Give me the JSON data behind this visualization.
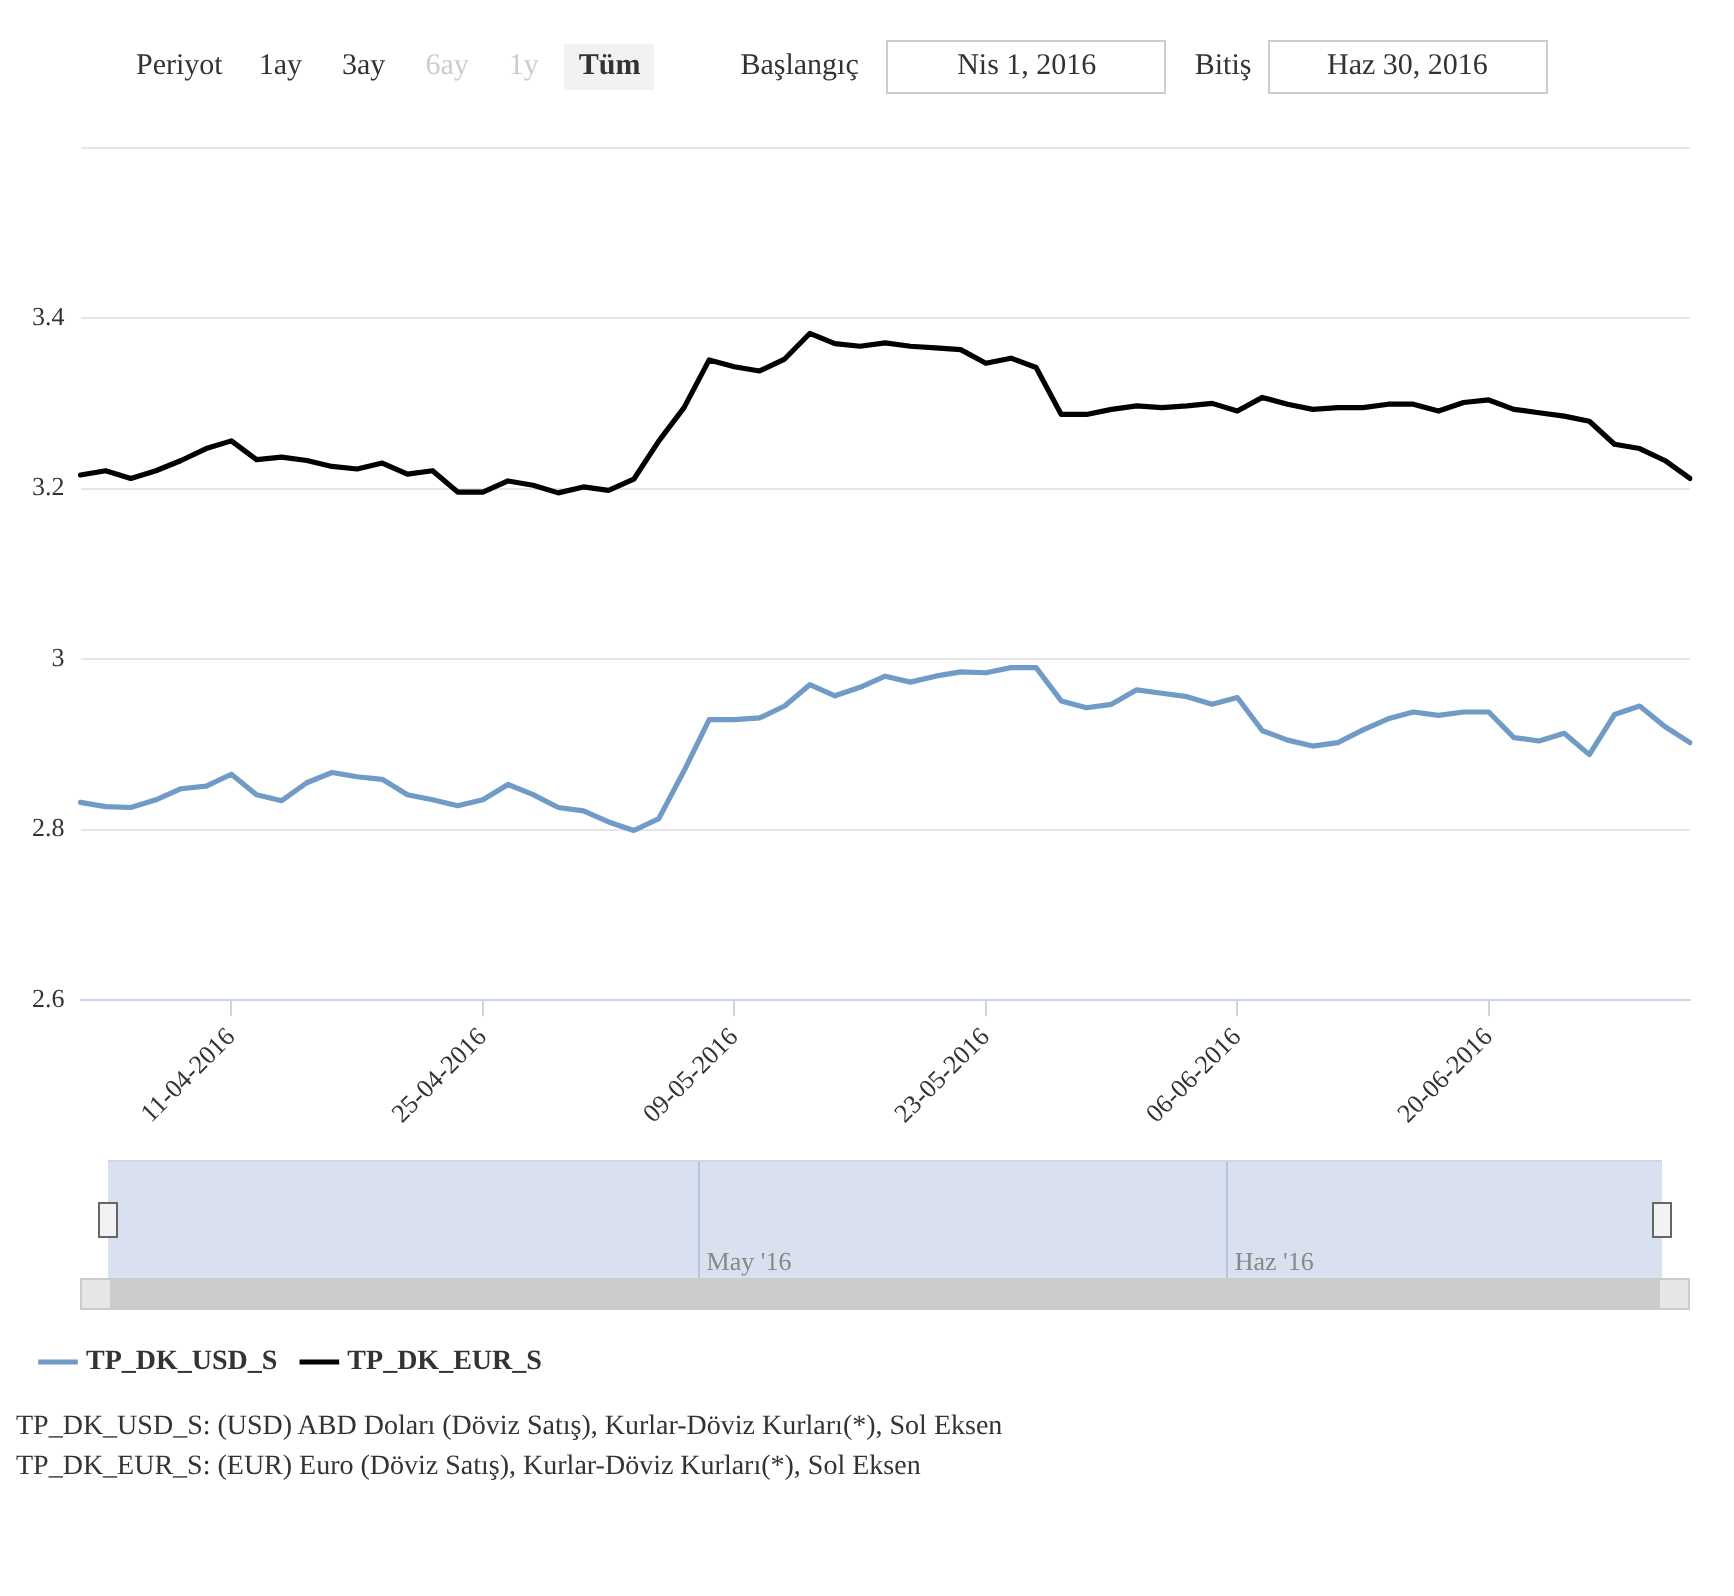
{
  "chart_data": {
    "type": "line",
    "categories": [
      null,
      null,
      null,
      null,
      null,
      null,
      "11-04-2016",
      null,
      null,
      null,
      null,
      null,
      null,
      null,
      null,
      null,
      "25-04-2016",
      null,
      null,
      null,
      null,
      null,
      null,
      null,
      null,
      null,
      "09-05-2016",
      null,
      null,
      null,
      null,
      null,
      null,
      null,
      null,
      null,
      "23-05-2016",
      null,
      null,
      null,
      null,
      null,
      null,
      null,
      null,
      null,
      "06-06-2016",
      null,
      null,
      null,
      null,
      null,
      null,
      null,
      null,
      null,
      "20-06-2016",
      null,
      null,
      null,
      null,
      null,
      null,
      null,
      null
    ],
    "series": [
      {
        "name": "TP_DK_USD_S",
        "color": "#6f9bc6",
        "values": [
          2.832,
          2.827,
          2.826,
          2.835,
          2.848,
          2.851,
          2.865,
          2.841,
          2.834,
          2.855,
          2.867,
          2.862,
          2.859,
          2.841,
          2.835,
          2.828,
          2.835,
          2.853,
          2.841,
          2.826,
          2.822,
          2.809,
          2.799,
          2.813,
          2.869,
          2.929,
          2.929,
          2.931,
          2.945,
          2.97,
          2.957,
          2.967,
          2.98,
          2.973,
          2.98,
          2.985,
          2.984,
          2.99,
          2.99,
          2.951,
          2.943,
          2.947,
          2.964,
          2.96,
          2.956,
          2.947,
          2.955,
          2.916,
          2.905,
          2.898,
          2.902,
          2.917,
          2.93,
          2.938,
          2.934,
          2.938,
          2.938,
          2.908,
          2.904,
          2.913,
          2.888,
          2.935,
          2.945,
          2.921,
          2.902
        ]
      },
      {
        "name": "TP_DK_EUR_S",
        "color": "#000000",
        "values": [
          3.216,
          3.221,
          3.212,
          3.221,
          3.233,
          3.247,
          3.256,
          3.234,
          3.237,
          3.233,
          3.226,
          3.223,
          3.23,
          3.217,
          3.221,
          3.196,
          3.196,
          3.209,
          3.204,
          3.195,
          3.202,
          3.198,
          3.211,
          3.256,
          3.295,
          3.351,
          3.343,
          3.338,
          3.352,
          3.382,
          3.37,
          3.367,
          3.371,
          3.367,
          3.365,
          3.363,
          3.347,
          3.353,
          3.342,
          3.287,
          3.287,
          3.293,
          3.297,
          3.295,
          3.297,
          3.3,
          3.291,
          3.307,
          3.299,
          3.293,
          3.295,
          3.295,
          3.299,
          3.299,
          3.291,
          3.301,
          3.304,
          3.293,
          3.289,
          3.285,
          3.279,
          3.252,
          3.247,
          3.233,
          3.212
        ]
      }
    ],
    "ylim": [
      2.6,
      3.6
    ],
    "yticks": [
      2.6,
      2.8,
      3,
      3.2,
      3.4,
      {
        "value": 3.6,
        "label": null
      }
    ],
    "grid": "y",
    "legend": "bottom",
    "marker": "none",
    "line_style": "solid",
    "annotations": [
      "Periyot",
      "1ay",
      "3ay",
      "6ay",
      "1y",
      "Tüm",
      "Başlangıç",
      "Nis 1, 2016",
      "Bitiş",
      "Haz 30, 2016",
      "May '16",
      "Haz '16",
      "TP_DK_USD_S: (USD) ABD Doları (Döviz Satış), Kurlar-Döviz Kurları(*), Sol Eksen",
      "TP_DK_EUR_S: (EUR) Euro (Döviz Satış), Kurlar-Döviz Kurları(*), Sol Eksen"
    ]
  }
}
